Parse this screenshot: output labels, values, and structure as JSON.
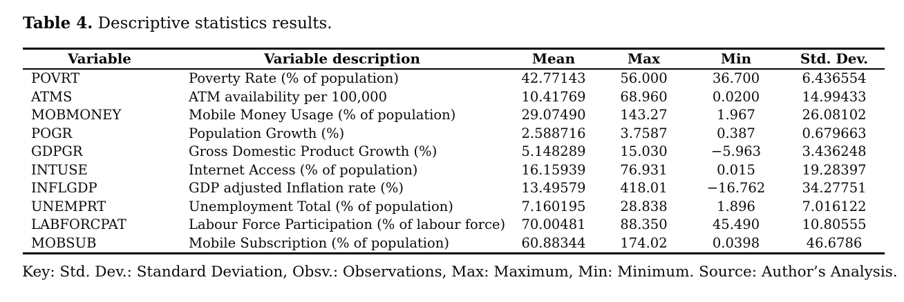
{
  "caption": {
    "bold": "Table 4.",
    "rest": " Descriptive statistics results."
  },
  "table": {
    "columns": [
      "Variable",
      "Variable description",
      "Mean",
      "Max",
      "Min",
      "Std. Dev."
    ],
    "rows": [
      [
        "POVRT",
        "Poverty Rate (% of population)",
        "42.77143",
        "56.000",
        "36.700",
        "6.436554"
      ],
      [
        "ATMS",
        "ATM availability per 100,000",
        "10.41769",
        "68.960",
        "0.0200",
        "14.99433"
      ],
      [
        "MOBMONEY",
        "Mobile Money Usage (% of population)",
        "29.07490",
        "143.27",
        "1.967",
        "26.08102"
      ],
      [
        "POGR",
        "Population Growth (%)",
        "2.588716",
        "3.7587",
        "0.387",
        "0.679663"
      ],
      [
        "GDPGR",
        "Gross Domestic Product Growth (%)",
        "5.148289",
        "15.030",
        "−5.963",
        "3.436248"
      ],
      [
        "INTUSE",
        "Internet Access (% of population)",
        "16.15939",
        "76.931",
        "0.015",
        "19.28397"
      ],
      [
        "INFLGDP",
        "GDP adjusted Inflation rate (%)",
        "13.49579",
        "418.01",
        "−16.762",
        "34.27751"
      ],
      [
        "UNEMPRT",
        "Unemployment Total (% of population)",
        "7.160195",
        "28.838",
        "1.896",
        "7.016122"
      ],
      [
        "LABFORCPAT",
        "Labour Force Participation (% of labour force)",
        "70.00481",
        "88.350",
        "45.490",
        "10.80555"
      ],
      [
        "MOBSUB",
        "Mobile Subscription (% of population)",
        "60.88344",
        "174.02",
        "0.0398",
        "46.6786"
      ]
    ]
  },
  "footnote": "Key: Std. Dev.: Standard Deviation, Obsv.: Observations, Max: Maximum, Min: Minimum. Source: Author’s Analysis."
}
